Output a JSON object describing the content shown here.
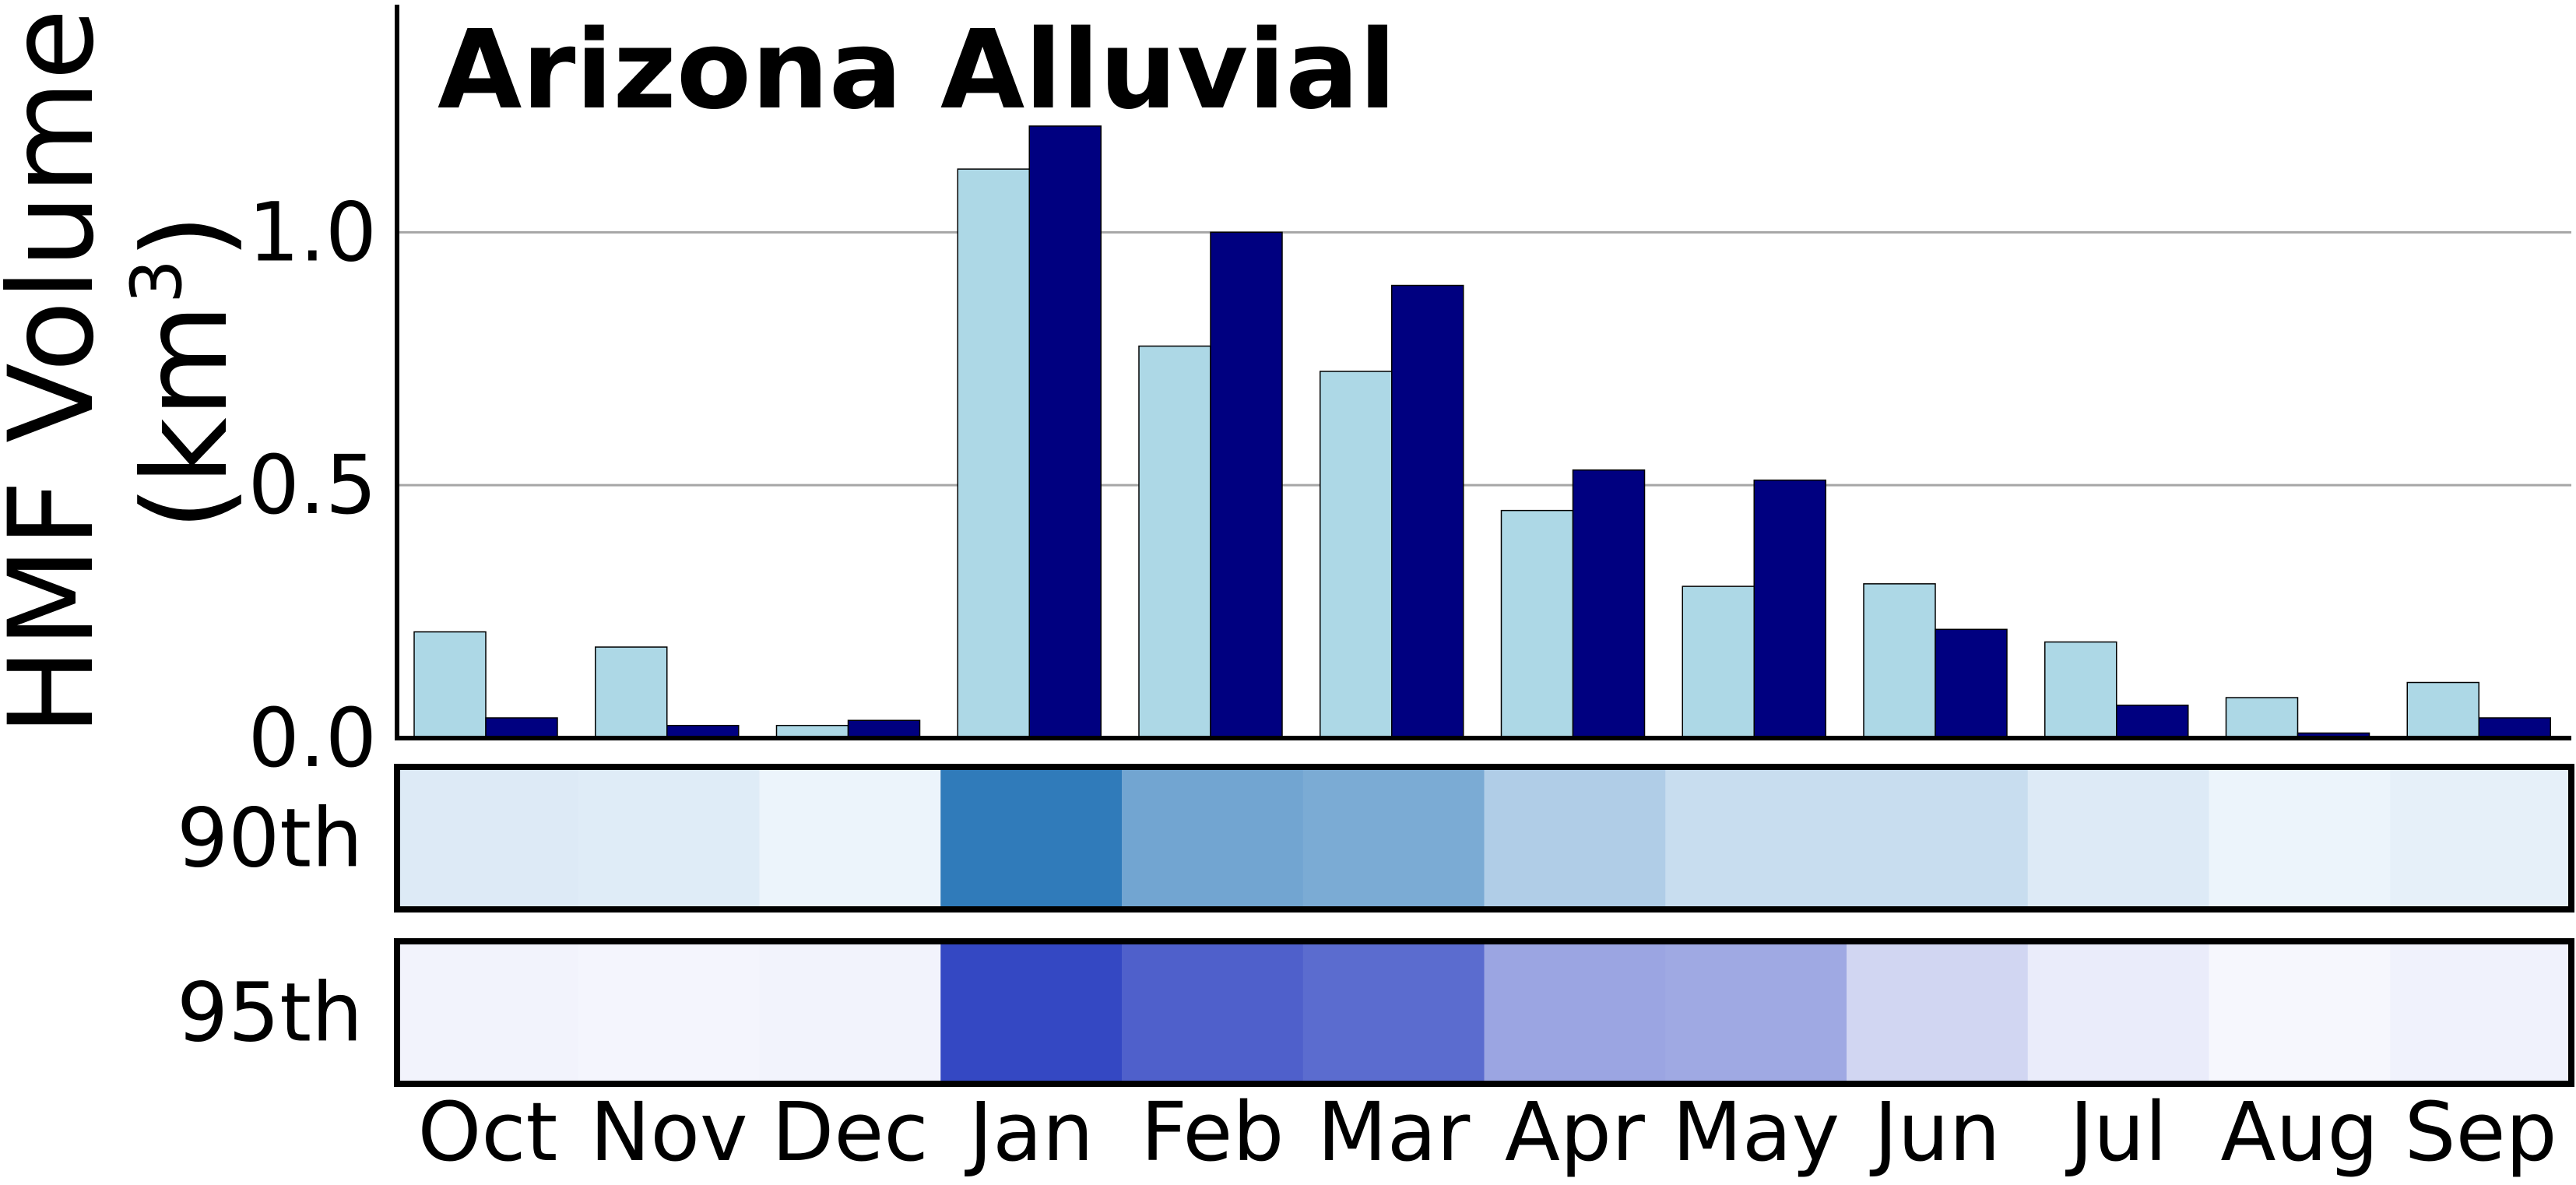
{
  "chart_data": {
    "type": "bar",
    "title": "Arizona Alluvial",
    "ylabel_line1": "HMF Volume",
    "ylabel_line2": "(km",
    "ylabel_sup": "3",
    "ylabel_close": ")",
    "categories": [
      "Oct",
      "Nov",
      "Dec",
      "Jan",
      "Feb",
      "Mar",
      "Apr",
      "May",
      "Jun",
      "Jul",
      "Aug",
      "Sep"
    ],
    "series": [
      {
        "values": [
          0.21,
          0.18,
          0.025,
          1.125,
          0.775,
          0.725,
          0.45,
          0.3,
          0.305,
          0.19,
          0.08,
          0.11
        ],
        "color": "#add8e6"
      },
      {
        "values": [
          0.04,
          0.025,
          0.035,
          1.21,
          1.0,
          0.895,
          0.53,
          0.51,
          0.215,
          0.065,
          0.01,
          0.04
        ],
        "color": "#000080"
      }
    ],
    "ylim": [
      0,
      1.45
    ],
    "yticks": [
      0.0,
      0.5,
      1.0
    ],
    "ytick_labels": [
      "0.0",
      "0.5",
      "1.0"
    ],
    "grid": "horizontal",
    "heatmap": [
      {
        "label": "90th",
        "values": [
          0.12,
          0.11,
          0.05,
          0.93,
          0.62,
          0.58,
          0.33,
          0.22,
          0.22,
          0.12,
          0.05,
          0.08
        ],
        "color_low": "#f7fbff",
        "color_high": "#2171b5"
      },
      {
        "label": "95th",
        "values": [
          0.03,
          0.02,
          0.03,
          0.95,
          0.82,
          0.76,
          0.45,
          0.43,
          0.19,
          0.07,
          0.01,
          0.04
        ],
        "color_low": "#f8f9fe",
        "color_high": "#2a3fc0"
      }
    ]
  }
}
